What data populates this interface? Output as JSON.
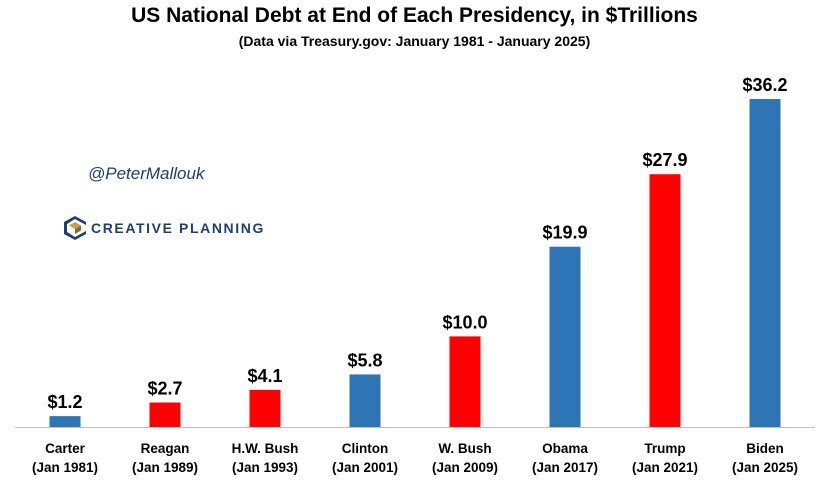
{
  "header": {
    "title": "US National Debt at End of Each Presidency, in $Trillions",
    "subtitle": "(Data via Treasury.gov: January 1981 - January 2025)"
  },
  "watermark": {
    "handle": "@PeterMallouk",
    "brand": "CREATIVE PLANNING",
    "brand_icon": "creative-planning-c-logo"
  },
  "colors": {
    "blue": "#2e75b6",
    "red": "#ff0000",
    "brand": "#1f3f6f"
  },
  "chart_data": {
    "type": "bar",
    "title": "US National Debt at End of Each Presidency, in $Trillions",
    "subtitle": "(Data via Treasury.gov: January 1981 - January 2025)",
    "xlabel": "",
    "ylabel": "",
    "ylim": [
      0,
      40
    ],
    "grid": false,
    "categories": [
      {
        "name": "Carter",
        "date": "(Jan 1981)"
      },
      {
        "name": "Reagan",
        "date": "(Jan 1989)"
      },
      {
        "name": "H.W. Bush",
        "date": "(Jan 1993)"
      },
      {
        "name": "Clinton",
        "date": "(Jan 2001)"
      },
      {
        "name": "W. Bush",
        "date": "(Jan 2009)"
      },
      {
        "name": "Obama",
        "date": "(Jan 2017)"
      },
      {
        "name": "Trump",
        "date": "(Jan 2021)"
      },
      {
        "name": "Biden",
        "date": "(Jan 2025)"
      }
    ],
    "values": [
      1.2,
      2.7,
      4.1,
      5.8,
      10.0,
      19.9,
      27.9,
      36.2
    ],
    "labels": [
      "$1.2",
      "$2.7",
      "$4.1",
      "$5.8",
      "$10.0",
      "$19.9",
      "$27.9",
      "$36.2"
    ],
    "bar_colors": [
      "blue",
      "red",
      "red",
      "blue",
      "red",
      "blue",
      "red",
      "blue"
    ]
  }
}
